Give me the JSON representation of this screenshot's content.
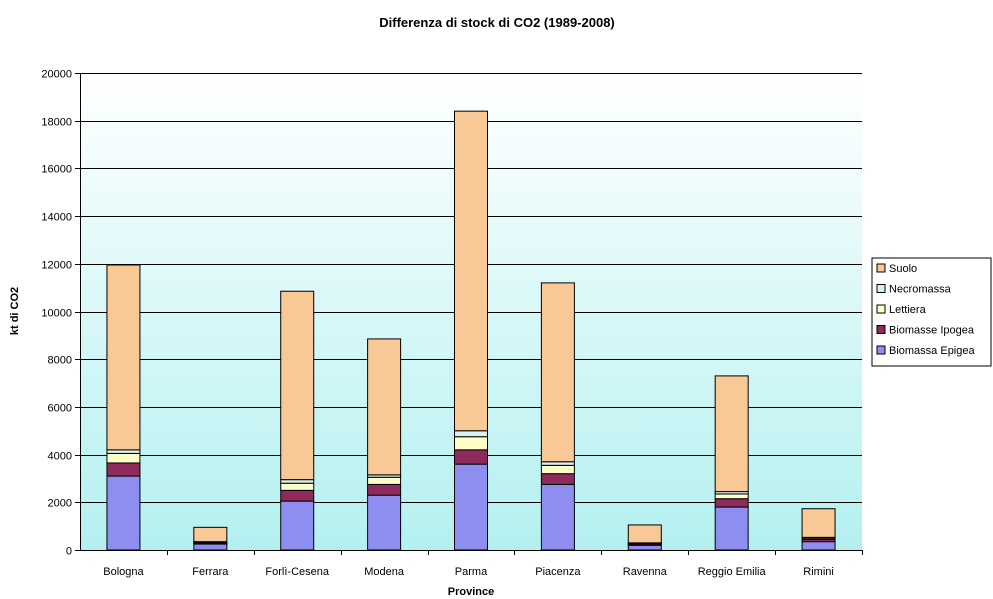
{
  "chart_data": {
    "type": "bar",
    "stacked": true,
    "title": "Differenza di stock di CO2 (1989-2008)",
    "xlabel": "Province",
    "ylabel": "kt di CO2",
    "ylim": [
      0,
      20000
    ],
    "yticks": [
      0,
      2000,
      4000,
      6000,
      8000,
      10000,
      12000,
      14000,
      16000,
      18000,
      20000
    ],
    "ytick_labels": [
      "0",
      "2000",
      "4000",
      "6000",
      "8000",
      "10000",
      "12000",
      "14000",
      "16000",
      "18000",
      "20000"
    ],
    "grid": true,
    "legend_position": "right",
    "categories": [
      "Bologna",
      "Ferrara",
      "Forlì-Cesena",
      "Modena",
      "Parma",
      "Piacenza",
      "Ravenna",
      "Reggio Emilia",
      "Rimini"
    ],
    "series": [
      {
        "name": "Biomassa Epigea",
        "color": "#8e8ef0",
        "values": [
          3100,
          250,
          2050,
          2300,
          3600,
          2750,
          200,
          1800,
          350
        ]
      },
      {
        "name": "Biomasse Ipogea",
        "color": "#8e2a5c",
        "values": [
          550,
          50,
          450,
          450,
          600,
          450,
          50,
          350,
          100
        ]
      },
      {
        "name": "Lettiera",
        "color": "#fdfdc8",
        "values": [
          400,
          30,
          300,
          300,
          550,
          350,
          30,
          200,
          50
        ]
      },
      {
        "name": "Necromassa",
        "color": "#d8f2f2",
        "values": [
          150,
          20,
          150,
          100,
          250,
          150,
          20,
          100,
          30
        ]
      },
      {
        "name": "Suolo",
        "color": "#f8c896",
        "values": [
          7750,
          600,
          7900,
          5700,
          13400,
          7500,
          750,
          4850,
          1200
        ]
      }
    ]
  }
}
